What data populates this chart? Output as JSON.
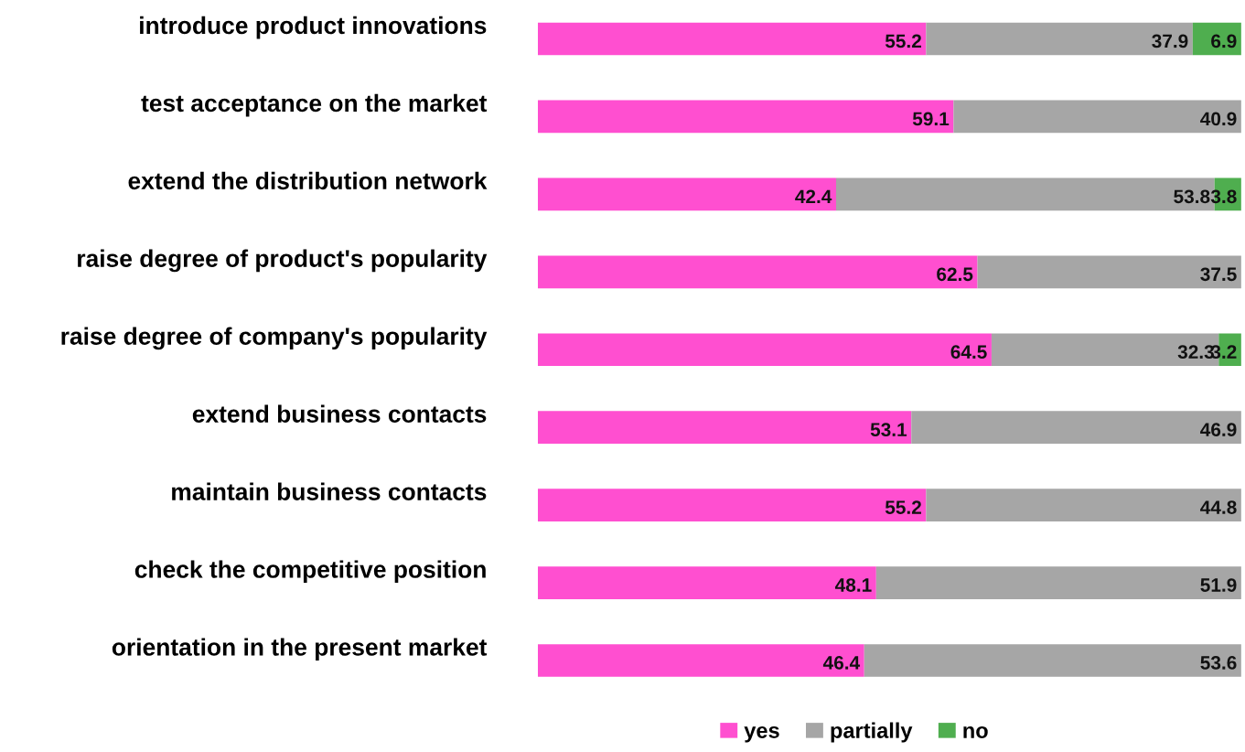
{
  "chart_data": {
    "type": "bar",
    "orientation": "horizontal",
    "stacked": true,
    "data_labels": true,
    "legend": "bottom",
    "grid": false,
    "tick_labels": "y",
    "xlim": [
      0,
      100
    ],
    "categories": [
      "introduce product innovations",
      "test acceptance on the market",
      "extend the distribution network",
      "raise degree of product's popularity",
      "raise degree of company's popularity",
      "extend business contacts",
      "maintain business contacts",
      "check the competitive position",
      "orientation in the present market"
    ],
    "series": [
      {
        "name": "yes",
        "color": "#ff4fd0",
        "values": [
          55.2,
          59.1,
          42.4,
          62.5,
          64.5,
          53.1,
          55.2,
          48.1,
          46.4
        ]
      },
      {
        "name": "partially",
        "color": "#a6a6a6",
        "values": [
          37.9,
          40.9,
          53.8,
          37.5,
          32.3,
          46.9,
          44.8,
          51.9,
          53.6
        ]
      },
      {
        "name": "no",
        "color": "#4fae4f",
        "values": [
          6.9,
          null,
          3.8,
          null,
          3.2,
          null,
          null,
          null,
          null
        ]
      }
    ]
  }
}
